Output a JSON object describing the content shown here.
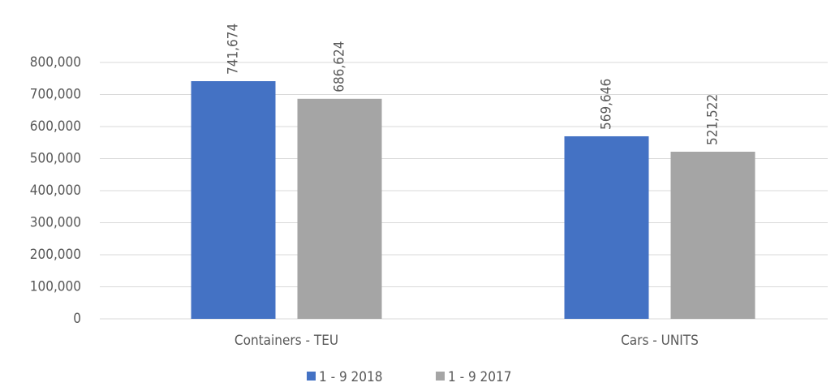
{
  "chart_data": {
    "type": "bar",
    "categories": [
      "Containers - TEU",
      "Cars - UNITS"
    ],
    "series": [
      {
        "name": "1 - 9 2018",
        "color": "#4472c4",
        "values": [
          741674,
          569646
        ],
        "value_labels": [
          "741,674",
          "569,646"
        ]
      },
      {
        "name": "1 - 9 2017",
        "color": "#a5a5a5",
        "values": [
          686624,
          521522
        ],
        "value_labels": [
          "686,624",
          "521,522"
        ]
      }
    ],
    "ylim": [
      0,
      800000
    ],
    "yticks": [
      0,
      {
        "value": 100000,
        "label": "100,000"
      },
      {
        "value": 200000,
        "label": "200,000"
      },
      {
        "value": 300000,
        "label": "300,000"
      },
      {
        "value": 400000,
        "label": "400,000"
      },
      {
        "value": 500000,
        "label": "500,000"
      },
      {
        "value": 600000,
        "label": "600,000"
      },
      {
        "value": 700000,
        "label": "700,000"
      },
      {
        "value": 800000,
        "label": "800,000"
      }
    ],
    "grid": true,
    "legend": "bottom"
  }
}
